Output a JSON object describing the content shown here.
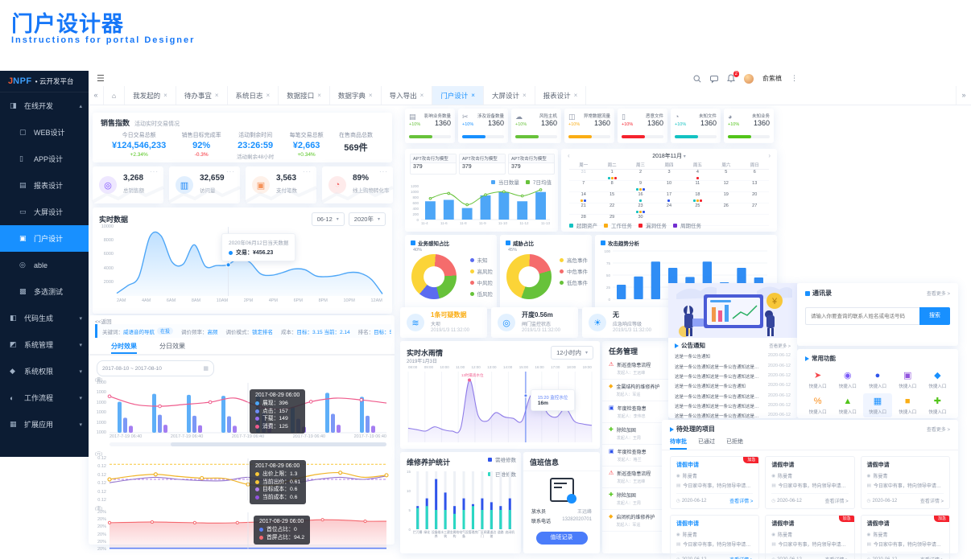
{
  "page": {
    "title": "门户设计器",
    "subtitle": "Instructions for portal Designer"
  },
  "topbar": {
    "user": "俞紫槙",
    "badge": "2"
  },
  "sidebar": {
    "logo": "JNPF",
    "logo_sep": "•",
    "logo_suffix": "云开发平台",
    "items": [
      {
        "label": "在线开发",
        "type": "group",
        "glyph": "◨",
        "caret": "▴"
      },
      {
        "label": "WEB设计",
        "type": "child",
        "glyph": "▢"
      },
      {
        "label": "APP设计",
        "type": "child",
        "glyph": "▯"
      },
      {
        "label": "报表设计",
        "type": "child",
        "glyph": "▤"
      },
      {
        "label": "大屏设计",
        "type": "child",
        "glyph": "▭"
      },
      {
        "label": "门户设计",
        "type": "child",
        "glyph": "▣",
        "active": true
      },
      {
        "label": "able",
        "type": "child",
        "glyph": "◎"
      },
      {
        "label": "多选测试",
        "type": "child",
        "glyph": "▩"
      },
      {
        "label": "代码生成",
        "type": "group",
        "glyph": "◧",
        "caret": "▾"
      },
      {
        "label": "系统管理",
        "type": "group",
        "glyph": "◩",
        "caret": "▾"
      },
      {
        "label": "系统权限",
        "type": "group",
        "glyph": "◆",
        "caret": "▾"
      },
      {
        "label": "工作流程",
        "type": "group",
        "glyph": "◐",
        "caret": "▾"
      },
      {
        "label": "扩展应用",
        "type": "group",
        "glyph": "▦",
        "caret": "▾"
      }
    ]
  },
  "tabs": {
    "items": [
      "我发起的",
      "待办事宜",
      "系统日志",
      "数据接口",
      "数据字典",
      "导入导出",
      "门户设计",
      "大屏设计",
      "报表设计"
    ],
    "active": "门户设计"
  },
  "sales": {
    "title": "销售指数",
    "subtitle": "活动实时交易情况",
    "stats": [
      {
        "label": "今日交易总额",
        "value": "¥124,546,233",
        "vcolor": "#1890ff",
        "delta": "+2.34%",
        "dcolor": "#52c41a"
      },
      {
        "label": "销售目标完成率",
        "value": "92%",
        "vcolor": "#1890ff",
        "delta": "-0.3%",
        "dcolor": "#f5222d"
      },
      {
        "label": "活动剩余时间",
        "value": "23:26:59",
        "vcolor": "#1890ff",
        "delta": "活动剩余48小时",
        "dcolor": "#9aa3b2"
      },
      {
        "label": "每笔交易总额",
        "value": "¥2,663",
        "vcolor": "#1890ff",
        "delta": "+0.34%",
        "dcolor": "#52c41a"
      },
      {
        "label": "在售商品总数",
        "value": "569件",
        "vcolor": "#2b3442",
        "delta": "",
        "dcolor": "#9aa3b2"
      }
    ]
  },
  "kpis": [
    {
      "value": "3,268",
      "label": "总销售额",
      "color": "#7c4dff",
      "glyph": "◎"
    },
    {
      "value": "32,659",
      "label": "访问量",
      "color": "#1e88f7",
      "glyph": "▥"
    },
    {
      "value": "3,563",
      "label": "支付笔数",
      "color": "#f5935a",
      "glyph": "▣"
    },
    {
      "value": "89%",
      "label": "线上购物转化率",
      "color": "#f56c6c",
      "glyph": "◔"
    }
  ],
  "realtime": {
    "title": "实时数据",
    "select1": "06-12",
    "select2": "2020年",
    "yticks": [
      "10000",
      "8000",
      "6000",
      "4000",
      "2000"
    ],
    "xticks": [
      "2AM",
      "4AM",
      "6AM",
      "8AM",
      "10AM",
      "2PM",
      "4PM",
      "6PM",
      "8PM",
      "10PM",
      "12AM"
    ],
    "values": [
      400,
      1500,
      2800,
      8600,
      8700,
      4900,
      4600,
      7400,
      4300,
      4400,
      4500,
      5400,
      4900,
      3200,
      3000,
      3400,
      3900,
      3800,
      2900,
      2800,
      3000,
      3400,
      3300,
      2400,
      300
    ],
    "ymax": 10000,
    "tooltip": {
      "title": "2020年06月12日当天数据",
      "series": "交易：¥456.23",
      "dot": "#1890ff"
    }
  },
  "keyword": {
    "back": "<<返回",
    "fields": [
      {
        "label": "关键词：",
        "value": "威语音的导航",
        "tag": "在投"
      },
      {
        "label": "调价频率：",
        "value": "高频"
      },
      {
        "label": "调价模式：",
        "value": "锁定排名"
      },
      {
        "label": "成本：",
        "value": "目标：3.15  当前：2.14"
      },
      {
        "label": "排名：",
        "value": "目标：5"
      }
    ],
    "tabs": [
      "分时效果",
      "分日效果"
    ],
    "active_tab": "分时效果",
    "daterange": "2017-08-10 ~ 2017-08-10",
    "chart1": {
      "axis": "(量)",
      "yticks": [
        "1000",
        "1000",
        "1000",
        "1000",
        "1000",
        "1000"
      ],
      "xticks": [
        "2017-7-19 06:40",
        "2017-7-19 06:40",
        "2017-7-19 06:40",
        "2017-7-19 06:40",
        "2017-7-19 06:40"
      ],
      "groups": [
        [
          62,
          30,
          14
        ],
        [
          78,
          36,
          16
        ],
        [
          76,
          34,
          15
        ],
        [
          74,
          33,
          14
        ],
        [
          78,
          40,
          18
        ],
        [
          52,
          28,
          12
        ],
        [
          80,
          38,
          16
        ],
        [
          72,
          34,
          14
        ]
      ],
      "line": [
        70,
        52,
        48,
        52,
        57,
        66,
        46,
        42,
        58,
        66,
        62,
        55
      ],
      "tooltip": {
        "title": "2017-08-29 06:00",
        "rows": [
          {
            "c": "#4da6f7",
            "t": "展现：396"
          },
          {
            "c": "#6e8df5",
            "t": "点击：157"
          },
          {
            "c": "#9a6ff0",
            "t": "下载：149"
          },
          {
            "c": "#ef5b8c",
            "t": "消费：125"
          }
        ]
      }
    },
    "chart2": {
      "axis": "(元)",
      "yticks": [
        "0.12",
        "0.12",
        "0.12",
        "0.12",
        "0.12",
        "0.12"
      ],
      "cap": 0.86,
      "target": 0.5,
      "bid": [
        0.5,
        0.58,
        0.62,
        0.57,
        0.53,
        0.52,
        0.38,
        0.35,
        0.5,
        0.62,
        0.66,
        0.55,
        0.6
      ],
      "cost": [
        0.42,
        0.5,
        0.55,
        0.5,
        0.47,
        0.47,
        0.55,
        0.45,
        0.42,
        0.5,
        0.55,
        0.5,
        0.58
      ],
      "tooltip": {
        "title": "2017-08-29 06:00",
        "rows": [
          {
            "c": "#f7c739",
            "t": "出价上限：1.3"
          },
          {
            "c": "#f7c739",
            "t": "当前出价：0.61"
          },
          {
            "c": "#b37feb",
            "t": "目标成本：0.6"
          },
          {
            "c": "#9254de",
            "t": "当前成本：0.6"
          }
        ]
      }
    },
    "chart3": {
      "axis": "(率)",
      "yticks": [
        "20%",
        "20%",
        "20%",
        "20%",
        "20%",
        "20%"
      ],
      "red": [
        0.72,
        0.73,
        0.74,
        0.73,
        0.72,
        0.71,
        0.72,
        0.74,
        0.76,
        0.78,
        0.8,
        0.79,
        0.76,
        0.76
      ],
      "blue": 0.03,
      "tooltip": {
        "title": "2017-08-29 06:00",
        "rows": [
          {
            "c": "#597ef7",
            "t": "首位占比：0"
          },
          {
            "c": "#f5686f",
            "t": "首屏占比：94.2"
          }
        ]
      }
    }
  },
  "mini_cards": {
    "value": "1360",
    "badge": "+10%",
    "items": [
      {
        "label": "影响业务数量",
        "color": "#67c23a",
        "glyph": "▤"
      },
      {
        "label": "涉及设备数量",
        "color": "#1890ff",
        "glyph": "✂"
      },
      {
        "label": "风险主机",
        "color": "#67c23a",
        "glyph": "☁"
      },
      {
        "label": "异常数据流量",
        "color": "#faad14",
        "glyph": "◫"
      },
      {
        "label": "恶意文件",
        "color": "#f5222d",
        "glyph": "▯"
      },
      {
        "label": "未知文件",
        "color": "#13c2c2",
        "glyph": "◔"
      },
      {
        "label": "未知业务",
        "color": "#52c41a",
        "glyph": "◕"
      }
    ]
  },
  "apt": {
    "box_label": "APT攻击行为模型",
    "box_value": "379",
    "legend": [
      {
        "c": "#4da6f7",
        "t": "当日数量"
      },
      {
        "c": "#67c23a",
        "t": "7日均值"
      }
    ],
    "yticks": [
      "1200",
      "1000",
      "800",
      "600",
      "400",
      "200",
      "0"
    ],
    "xticks": [
      "11-4",
      "11-6",
      "11-8",
      "11-9",
      "11-10",
      "11-12",
      "11-13"
    ],
    "bars": [
      650,
      700,
      410,
      860,
      980,
      650,
      980
    ],
    "line": [
      750,
      930,
      530,
      880,
      990,
      840,
      1060
    ],
    "ymax": 1200
  },
  "calendar": {
    "title": "2018年11月",
    "week": [
      "周一",
      "周二",
      "周三",
      "周四",
      "周五",
      "周六",
      "周日"
    ],
    "rows": [
      [
        "31",
        "1",
        "2",
        "3",
        "4",
        "5",
        "6"
      ],
      [
        "7",
        "8",
        "9",
        "10",
        "11",
        "12",
        "13"
      ],
      [
        "14",
        "15",
        "16",
        "17",
        "18",
        "19",
        "20"
      ],
      [
        "21",
        "22",
        "23",
        "24",
        "25",
        "26",
        "27"
      ],
      [
        "28",
        "29",
        "30",
        "",
        "",
        "",
        ""
      ]
    ],
    "dots": {
      "1": [
        "#13c2c2",
        "#faad14",
        "#f5222d"
      ],
      "4": [
        "#f5222d"
      ],
      "9": [
        "#13c2c2",
        "#faad14",
        "#2f54eb"
      ],
      "14": [
        "#faad14",
        "#2f54eb"
      ],
      "16": [
        "#13c2c2"
      ],
      "17": [
        "#2f54eb"
      ],
      "18": [
        "#13c2c2",
        "#faad14",
        "#f5222d"
      ],
      "23": [
        "#13c2c2",
        "#faad14",
        "#2f54eb"
      ]
    },
    "legend": [
      {
        "c": "#13c2c2",
        "t": "超期资产"
      },
      {
        "c": "#faad14",
        "t": "工作任务"
      },
      {
        "c": "#f5222d",
        "t": "漏洞任务"
      },
      {
        "c": "#722ed1",
        "t": "周期任务"
      }
    ]
  },
  "donut1": {
    "title": "业务感知占比",
    "annotation": "40%",
    "slices": [
      {
        "t": "高风险",
        "v": 40,
        "c": "#fbd437"
      },
      {
        "t": "中风险",
        "v": 23,
        "c": "#f56c6c"
      },
      {
        "t": "低风险",
        "v": 22,
        "c": "#67c23a"
      },
      {
        "t": "未知",
        "v": 15,
        "c": "#5b6bf0"
      }
    ],
    "legend": [
      {
        "c": "#5b6bf0",
        "t": "未知"
      },
      {
        "c": "#fbd437",
        "t": "高风险"
      },
      {
        "c": "#f56c6c",
        "t": "中风险"
      },
      {
        "c": "#67c23a",
        "t": "低风险"
      }
    ],
    "from": -140
  },
  "donut2": {
    "title": "威胁占比",
    "annotation": "45%",
    "slices": [
      {
        "t": "高危事件",
        "v": 45,
        "c": "#fbd437"
      },
      {
        "t": "中危事件",
        "v": 20,
        "c": "#f56c6c"
      },
      {
        "t": "低危事件",
        "v": 35,
        "c": "#67c23a"
      }
    ],
    "legend": [
      {
        "c": "#fbd437",
        "t": "高危事件"
      },
      {
        "c": "#f56c6c",
        "t": "中危事件"
      },
      {
        "c": "#67c23a",
        "t": "低危事件"
      }
    ],
    "from": -160
  },
  "attack": {
    "title": "攻击趋势分析",
    "yticks": [
      "100",
      "75",
      "50",
      "25",
      "0"
    ],
    "bars": [
      30,
      47,
      78,
      65,
      46,
      78,
      35,
      65,
      45
    ],
    "ymax": 100
  },
  "water": {
    "stats": [
      {
        "glyph": "≋",
        "title": "1条可疑数据",
        "tcolor": "#faad14",
        "sub": "大坝",
        "time": "2019/1/3 11:32:00"
      },
      {
        "glyph": "◎",
        "title": "开度0.56m",
        "tcolor": "#2b3442",
        "sub": "闸门监控状态",
        "time": "2019/1/3 11:32:00"
      },
      {
        "glyph": "☀",
        "title": "无",
        "tcolor": "#2b3442",
        "sub": "应急响应等级",
        "time": "2019/1/3 11:32:00"
      }
    ],
    "rain": {
      "title": "实时水雨情",
      "date": "2019年1月3日",
      "select": "12小时内",
      "xticks": [
        "08:00",
        "09:00",
        "10:00",
        "11:00",
        "12:00",
        "13:00",
        "14:00",
        "15:00",
        "16:00",
        "17:00",
        "18:00",
        "19:00"
      ],
      "values": [
        20,
        18,
        16,
        22,
        18,
        16,
        20,
        88,
        38,
        30,
        42,
        36,
        34,
        30,
        66,
        62,
        40,
        36,
        48,
        30,
        26,
        24
      ],
      "peak_label": "13时最高水位",
      "tooltip_time": "15:20 监控水位",
      "tooltip_value": "16m"
    }
  },
  "tasks": {
    "title": "任务管理",
    "items": [
      {
        "g": "⚠",
        "c": "#f5222d",
        "t": "新巡查隐患流程",
        "p": "发起人：王远峰"
      },
      {
        "g": "◆",
        "c": "#faad14",
        "t": "金属结构的维修养护",
        "p": "发起人：军遥"
      },
      {
        "g": "▣",
        "c": "#2f54eb",
        "t": "年度检查隐患",
        "p": "发起人：李伟忠"
      },
      {
        "g": "✚",
        "c": "#52c41a",
        "t": "除险加固",
        "p": "发起人：王周"
      },
      {
        "g": "▣",
        "c": "#2f54eb",
        "t": "年度检查隐患",
        "p": "发起人：格兰"
      },
      {
        "g": "⚠",
        "c": "#f5222d",
        "t": "新巡查隐患流程",
        "p": "发起人：王远峰"
      },
      {
        "g": "✚",
        "c": "#52c41a",
        "t": "除险加固",
        "p": "发起人：王周"
      },
      {
        "g": "◆",
        "c": "#faad14",
        "t": "启闭机的维修养护",
        "p": "发起人：军遥"
      }
    ]
  },
  "maintain": {
    "title": "维修养护统计",
    "legend": [
      {
        "c": "#2f54eb",
        "t": "需维修数"
      },
      {
        "c": "#2bd9c2",
        "t": "已维修数"
      }
    ],
    "yticks": [
      "15",
      "10",
      "5",
      "0"
    ],
    "cats": [
      "拦污栅",
      "绿化",
      "设备维养",
      "水工建筑",
      "金属结构",
      "电气设备",
      "管理房",
      "厂区闸门",
      "渠道边坡",
      "道路",
      "启闭机"
    ],
    "total": [
      6,
      8,
      13,
      9.5,
      6,
      8,
      6.5,
      8,
      7,
      6,
      8
    ],
    "done": [
      5.5,
      6,
      5,
      5,
      4,
      5,
      6,
      5,
      5,
      5,
      5
    ],
    "ymax": 15
  },
  "duty": {
    "title": "值班信息",
    "rows": [
      {
        "label": "放水员",
        "value": "王远峰"
      },
      {
        "label": "联系电话",
        "value": "13282020701"
      }
    ],
    "button": "值班记录"
  },
  "notice": {
    "title": "公告通知",
    "more": "查看更多 >",
    "items": [
      {
        "text": "这是一条公告通知",
        "date": "2020-06-12"
      },
      {
        "text": "这是一条公告通知这是一条公告通知这是一条公告通知",
        "date": "2020-06-12"
      },
      {
        "text": "这是一条公告通知这是一条公告通知这是一条公告通知",
        "date": "2020-06-12"
      },
      {
        "text": "这是一条公告通知这是一条公告通知",
        "date": "2020-06-12"
      },
      {
        "text": "这是一条公告通知这是一条公告通知这是一条公告通知",
        "date": "2020-06-12"
      },
      {
        "text": "这是一条公告通知这是一条公告通知这是一条",
        "date": "2020-06-12"
      },
      {
        "text": "这是一条公告通知这是一条公告通知这是一条",
        "date": "2020-06-12"
      }
    ]
  },
  "contacts": {
    "title": "通讯录",
    "more": "查看更多 >",
    "placeholder": "请输入你要查询的联系人姓名或电话号码",
    "button": "搜索"
  },
  "quick": {
    "title": "常用功能",
    "tile_label": "快捷入口",
    "icons": [
      {
        "g": "➤",
        "c": "#f5484d"
      },
      {
        "g": "◉",
        "c": "#7a5af8"
      },
      {
        "g": "●",
        "c": "#2f54eb"
      },
      {
        "g": "▣",
        "c": "#9254de"
      },
      {
        "g": "◆",
        "c": "#1890ff"
      },
      {
        "g": "%",
        "c": "#fa8c16"
      },
      {
        "g": "▲",
        "c": "#52c41a"
      },
      {
        "g": "▦",
        "c": "#1890ff"
      },
      {
        "g": "■",
        "c": "#faad14"
      },
      {
        "g": "✚",
        "c": "#52c41a"
      }
    ]
  },
  "todo": {
    "title": "待处理的项目",
    "more": "查看更多 >",
    "tabs": [
      "待审批",
      "已通过",
      "已拒绝"
    ],
    "active_tab": "待审批",
    "badge": "加急",
    "cards": [
      {
        "title": "请假申请",
        "badge": true,
        "blue": true,
        "link_blue": true
      },
      {
        "title": "请假申请"
      },
      {
        "title": "请假申请"
      },
      {
        "title": "请假申请",
        "blue": true,
        "link_blue": true
      },
      {
        "title": "请假申请",
        "badge": true
      },
      {
        "title": "请假申请",
        "badge": true
      }
    ],
    "person": "陈曼青",
    "desc": "今日家中有事，特向领导申请请假一天，望批准。",
    "date": "2020-06-12",
    "link": "查看详情 >"
  }
}
